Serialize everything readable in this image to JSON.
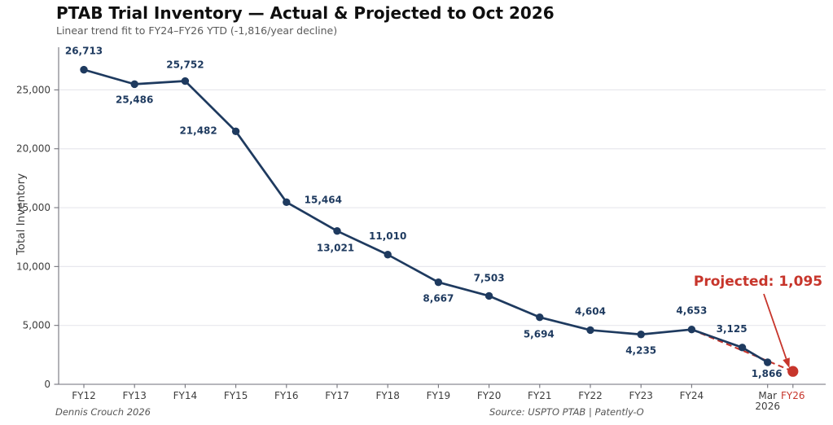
{
  "header": {
    "title": "PTAB Trial Inventory — Actual & Projected to Oct 2026",
    "subtitle": "Linear trend fit to FY24–FY26 YTD (-1,816/year decline)"
  },
  "footer": {
    "left_credit": "Dennis Crouch 2026",
    "source": "Source: USPTO PTAB | Patently-O"
  },
  "colors": {
    "actual": "#1e3a5f",
    "projected": "#c7352b",
    "grid": "#e8e8ed",
    "spine": "#74747c",
    "tick_text": "#3d3d3d",
    "title": "#0f0f0f",
    "subtitle": "#5a5a5a",
    "footer": "#555555"
  },
  "chart_data": {
    "type": "line",
    "title": "PTAB Trial Inventory — Actual & Projected to Oct 2026",
    "subtitle": "Linear trend fit to FY24–FY26 YTD (-1,816/year decline)",
    "xlabel": "",
    "ylabel": "Total Inventory",
    "ylim": [
      0,
      28000
    ],
    "grid": "horizontal-only",
    "legend": "none",
    "yticks": [
      {
        "value": 0,
        "label": "0"
      },
      {
        "value": 5000,
        "label": "5,000"
      },
      {
        "value": 10000,
        "label": "10,000"
      },
      {
        "value": 15000,
        "label": "15,000"
      },
      {
        "value": 20000,
        "label": "20,000"
      },
      {
        "value": 25000,
        "label": "25,000"
      }
    ],
    "xticks": [
      {
        "x": 0,
        "label": "FY12"
      },
      {
        "x": 1,
        "label": "FY13"
      },
      {
        "x": 2,
        "label": "FY14"
      },
      {
        "x": 3,
        "label": "FY15"
      },
      {
        "x": 4,
        "label": "FY16"
      },
      {
        "x": 5,
        "label": "FY17"
      },
      {
        "x": 6,
        "label": "FY18"
      },
      {
        "x": 7,
        "label": "FY19"
      },
      {
        "x": 8,
        "label": "FY20"
      },
      {
        "x": 9,
        "label": "FY21"
      },
      {
        "x": 10,
        "label": "FY22"
      },
      {
        "x": 11,
        "label": "FY23"
      },
      {
        "x": 12,
        "label": "FY24"
      },
      {
        "x": 13.5,
        "label": "Mar",
        "label2": "2026"
      },
      {
        "x": 14,
        "label": "FY26",
        "color_key": "projected"
      }
    ],
    "series": [
      {
        "name": "Actual",
        "style": "solid",
        "color_key": "actual",
        "points": [
          {
            "x": 0,
            "period": "FY12",
            "value": 26713,
            "label": "26,713",
            "dx": 0,
            "dy": -23
          },
          {
            "x": 1,
            "period": "FY13",
            "value": 25486,
            "label": "25,486",
            "dx": 0,
            "dy": 19
          },
          {
            "x": 2,
            "period": "FY14",
            "value": 25752,
            "label": "25,752",
            "dx": 0,
            "dy": -20
          },
          {
            "x": 3,
            "period": "FY15",
            "value": 21482,
            "label": "21,482",
            "dx": -46,
            "dy": -1
          },
          {
            "x": 4,
            "period": "FY16",
            "value": 15464,
            "label": "15,464",
            "dx": 45,
            "dy": -3
          },
          {
            "x": 5,
            "period": "FY17",
            "value": 13021,
            "label": "13,021",
            "dx": -2,
            "dy": 21
          },
          {
            "x": 6,
            "period": "FY18",
            "value": 11010,
            "label": "11,010",
            "dx": 0,
            "dy": -23
          },
          {
            "x": 7,
            "period": "FY19",
            "value": 8667,
            "label": "8,667",
            "dx": 0,
            "dy": 20
          },
          {
            "x": 8,
            "period": "FY20",
            "value": 7503,
            "label": "7,503",
            "dx": 0,
            "dy": -22
          },
          {
            "x": 9,
            "period": "FY21",
            "value": 5694,
            "label": "5,694",
            "dx": -1,
            "dy": 21
          },
          {
            "x": 10,
            "period": "FY22",
            "value": 4604,
            "label": "4,604",
            "dx": 0,
            "dy": -23
          },
          {
            "x": 11,
            "period": "FY23",
            "value": 4235,
            "label": "4,235",
            "dx": 0,
            "dy": 20
          },
          {
            "x": 12,
            "period": "FY24",
            "value": 4653,
            "label": "4,653",
            "dx": 0,
            "dy": -23
          },
          {
            "x": 13,
            "period": "FY25",
            "value": 3125,
            "label": "3,125",
            "dx": -13,
            "dy": -23
          },
          {
            "x": 13.5,
            "period": "Mar 2026",
            "value": 1866,
            "label": "1,866",
            "dx": -1,
            "dy": 14
          }
        ]
      },
      {
        "name": "Projected",
        "style": "point",
        "color_key": "projected",
        "points": [
          {
            "x": 14,
            "period": "FY26",
            "value": 1095,
            "label": "1,095"
          }
        ]
      }
    ],
    "trend_line": {
      "description": "Linear trend fit to FY24–FY26 YTD",
      "slope_per_year": -1816,
      "style": "dashed",
      "color_key": "projected",
      "from": {
        "x": 12,
        "value": 4653
      },
      "to": {
        "x": 14,
        "value": 1095
      }
    },
    "annotation": {
      "text": "Projected: 1,095",
      "color_key": "projected",
      "text_cx": 931,
      "text_cy": 346,
      "arrow_from": [
        938,
        361
      ],
      "arrow_tip": [
        969.5,
        452
      ]
    }
  }
}
